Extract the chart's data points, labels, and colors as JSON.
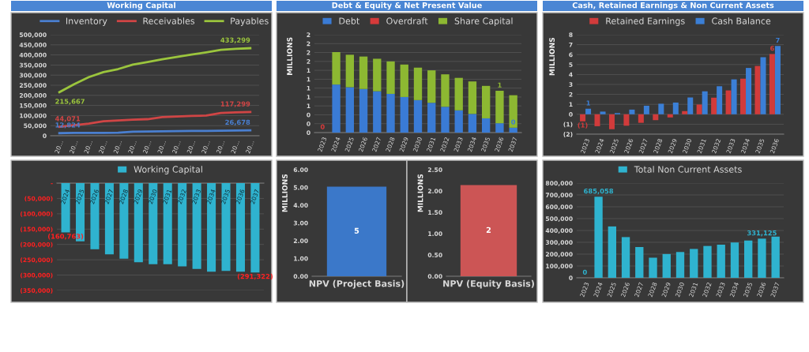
{
  "chart_data": [
    {
      "type": "line",
      "title": "Working Capital",
      "categories": [
        "20…",
        "20…",
        "20…",
        "20…",
        "20…",
        "20…",
        "20…",
        "20…",
        "20…",
        "20…",
        "20…",
        "20…",
        "20…",
        "20…"
      ],
      "series": [
        {
          "name": "Inventory",
          "color": "#4a7fd0",
          "values": [
            12824,
            14000,
            14000,
            14000,
            15000,
            20000,
            21000,
            22000,
            23000,
            24000,
            24000,
            25000,
            26000,
            26678
          ],
          "value_labels": [
            "12,824",
            null,
            null,
            null,
            null,
            null,
            null,
            null,
            null,
            null,
            null,
            null,
            null,
            "26,678"
          ]
        },
        {
          "name": "Receivables",
          "color": "#d04545",
          "values": [
            44071,
            52000,
            60000,
            72000,
            76000,
            80000,
            82000,
            92000,
            95000,
            98000,
            100000,
            113000,
            116000,
            117299
          ],
          "value_labels": [
            "44,071",
            null,
            null,
            null,
            null,
            null,
            null,
            null,
            null,
            null,
            null,
            null,
            null,
            "117,299"
          ]
        },
        {
          "name": "Payables",
          "color": "#9bc53d",
          "values": [
            215667,
            255000,
            290000,
            315000,
            330000,
            352000,
            365000,
            378000,
            390000,
            402000,
            413000,
            425000,
            430000,
            433299
          ],
          "value_labels": [
            "215,667",
            null,
            null,
            null,
            null,
            null,
            null,
            null,
            null,
            null,
            null,
            null,
            null,
            "433,299"
          ]
        }
      ],
      "ylim": [
        0,
        500000
      ],
      "yticks": [
        0,
        {
          "value": 50000,
          "label": "50,000"
        },
        {
          "value": 100000,
          "label": "100,000"
        },
        {
          "value": 150000,
          "label": "150,000"
        },
        {
          "value": 200000,
          "label": "200,000"
        },
        {
          "value": 250000,
          "label": "250,000"
        },
        {
          "value": 300000,
          "label": "300,000"
        },
        {
          "value": 350000,
          "label": "350,000"
        },
        {
          "value": 400000,
          "label": "400,000"
        },
        {
          "value": 450000,
          "label": "450,000"
        },
        {
          "value": 500000,
          "label": "500,000"
        }
      ],
      "grid": "y",
      "legend": "top"
    },
    {
      "type": "bar",
      "title": "Debt & Equity & Net Present Value",
      "ylabel": "MILLIONS",
      "stacked": true,
      "categories": [
        "2023",
        "2024",
        "2025",
        "2026",
        "2027",
        "2028",
        "2029",
        "2030",
        "2031",
        "2032",
        "2033",
        "2034",
        "2035",
        "2036",
        "2037"
      ],
      "series": [
        {
          "name": "Debt",
          "color": "#3a7bd5",
          "values": [
            0,
            1.08,
            1.02,
            0.98,
            0.93,
            0.87,
            0.8,
            0.73,
            0.67,
            0.58,
            0.5,
            0.42,
            0.32,
            0.21,
            0.11
          ],
          "value_labels": [
            null,
            null,
            null,
            null,
            null,
            null,
            null,
            null,
            null,
            null,
            null,
            null,
            null,
            null,
            "0"
          ]
        },
        {
          "name": "Overdraft",
          "color": "#d63a3a",
          "values": [
            0,
            0,
            0,
            0,
            0,
            0,
            0,
            0,
            0,
            0,
            0,
            0,
            0,
            0,
            0
          ],
          "value_labels": [
            "0",
            null,
            null,
            null,
            null,
            null,
            null,
            null,
            null,
            null,
            null,
            null,
            null,
            null,
            null
          ]
        },
        {
          "name": "Share Capital",
          "color": "#8db832",
          "values": [
            0,
            0.73,
            0.73,
            0.73,
            0.73,
            0.73,
            0.73,
            0.73,
            0.73,
            0.73,
            0.73,
            0.73,
            0.73,
            0.73,
            0.73
          ],
          "value_labels": [
            null,
            null,
            null,
            null,
            null,
            null,
            null,
            null,
            null,
            null,
            null,
            null,
            null,
            "1",
            null
          ]
        }
      ],
      "ylim": [
        0,
        2.2
      ],
      "yticks": [
        0,
        {
          "value": 0.2,
          "label": "0"
        },
        {
          "value": 0.4,
          "label": "0"
        },
        {
          "value": 0.6,
          "label": "1"
        },
        {
          "value": 0.8,
          "label": "1"
        },
        1,
        {
          "value": 1.2,
          "label": "1"
        },
        {
          "value": 1.4,
          "label": "1"
        },
        {
          "value": 1.6,
          "label": "2"
        },
        {
          "value": 1.8,
          "label": "2"
        },
        {
          "value": 2.0,
          "label": "2"
        },
        {
          "value": 2.2,
          "label": "2"
        }
      ],
      "grid": "y",
      "legend": "top"
    },
    {
      "type": "bar",
      "title": "Cash, Retained Earnings & Non Current Assets",
      "ylabel": "MILLIONS",
      "categories": [
        "2023",
        "2024",
        "2025",
        "2026",
        "2027",
        "2028",
        "2029",
        "2030",
        "2031",
        "2032",
        "2033",
        "2034",
        "2035",
        "2036"
      ],
      "series": [
        {
          "name": "Retained Earnings",
          "color": "#d13b3b",
          "values": [
            -0.71,
            -1.2,
            -1.5,
            -1.15,
            -0.86,
            -0.59,
            -0.32,
            0.32,
            0.98,
            1.67,
            2.4,
            3.58,
            4.86,
            6.06
          ],
          "value_labels": [
            "(1)",
            null,
            null,
            null,
            null,
            null,
            null,
            null,
            null,
            null,
            null,
            null,
            null,
            "6"
          ]
        },
        {
          "name": "Cash Balance",
          "color": "#3b7fd6",
          "values": [
            0.56,
            0.27,
            0.12,
            0.47,
            0.86,
            1.06,
            1.18,
            1.69,
            2.31,
            2.82,
            3.51,
            4.66,
            5.74,
            6.87
          ],
          "value_labels": [
            "1",
            null,
            null,
            null,
            null,
            null,
            null,
            null,
            null,
            null,
            null,
            null,
            null,
            "7"
          ]
        }
      ],
      "ylim": [
        -2,
        8
      ],
      "yticks": [
        {
          "value": -2,
          "label": "(2)"
        },
        {
          "value": -1,
          "label": "(1)"
        },
        0,
        1,
        2,
        3,
        4,
        5,
        6,
        7,
        8
      ],
      "grid": "y",
      "legend": "top"
    },
    {
      "type": "bar",
      "categories": [
        "2024",
        "2025",
        "2026",
        "2027",
        "2028",
        "2029",
        "2030",
        "2031",
        "2032",
        "2033",
        "2034",
        "2035",
        "2036",
        "2037"
      ],
      "series": [
        {
          "name": "Working Capital",
          "color": "#2fb3cf",
          "values": [
            -160763,
            -189500,
            -215700,
            -232000,
            -246400,
            -258000,
            -264500,
            -264500,
            -271700,
            -279800,
            -288800,
            -286000,
            -288800,
            -291322
          ],
          "value_labels": [
            "(160,763)",
            null,
            null,
            null,
            null,
            null,
            null,
            null,
            null,
            null,
            null,
            null,
            null,
            "(291,322)"
          ]
        }
      ],
      "ylim": [
        -350000,
        0
      ],
      "yticks": [
        {
          "value": 0,
          "label": "-"
        },
        {
          "value": -50000,
          "label": "(50,000)"
        },
        {
          "value": -100000,
          "label": "(100,000)"
        },
        {
          "value": -150000,
          "label": "(150,000)"
        },
        {
          "value": -200000,
          "label": "(200,000)"
        },
        {
          "value": -250000,
          "label": "(250,000)"
        },
        {
          "value": -300000,
          "label": "(300,000)"
        },
        {
          "value": -350000,
          "label": "(350,000)"
        }
      ],
      "grid": "y",
      "legend": "top"
    },
    {
      "type": "bar",
      "ylabel": "MILLIONS",
      "categories": [
        "NPV (Project Basis)"
      ],
      "values": [
        5.05
      ],
      "colors": [
        "#3b78c9"
      ],
      "value_labels": [
        "5"
      ],
      "ylim": [
        0,
        6
      ],
      "yticks": [
        {
          "value": 0,
          "label": "0.00"
        },
        {
          "value": 1,
          "label": "1.00"
        },
        {
          "value": 2,
          "label": "2.00"
        },
        {
          "value": 3,
          "label": "3.00"
        },
        {
          "value": 4,
          "label": "4.00"
        },
        {
          "value": 5,
          "label": "5.00"
        },
        {
          "value": 6,
          "label": "6.00"
        }
      ]
    },
    {
      "type": "bar",
      "ylabel": "MILLIONS",
      "categories": [
        "NPV (Equity Basis)"
      ],
      "values": [
        2.14
      ],
      "colors": [
        "#cc5555"
      ],
      "value_labels": [
        "2"
      ],
      "ylim": [
        0,
        2.5
      ],
      "yticks": [
        {
          "value": 0,
          "label": "0.00"
        },
        {
          "value": 0.5,
          "label": "0.50"
        },
        {
          "value": 1,
          "label": "1.00"
        },
        {
          "value": 1.5,
          "label": "1.50"
        },
        {
          "value": 2,
          "label": "2.00"
        },
        {
          "value": 2.5,
          "label": "2.50"
        }
      ]
    },
    {
      "type": "bar",
      "categories": [
        "2023",
        "2024",
        "2025",
        "2026",
        "2027",
        "2028",
        "2029",
        "2030",
        "2031",
        "2032",
        "2033",
        "2034",
        "2035",
        "2036",
        "2037"
      ],
      "series": [
        {
          "name": "Total Non Current Assets",
          "color": "#2fb3cf",
          "values": [
            0,
            685058,
            434000,
            344000,
            260000,
            170000,
            201000,
            218000,
            244000,
            269000,
            280000,
            298500,
            315000,
            331125,
            348000
          ],
          "value_labels": [
            "0",
            "685,058",
            null,
            null,
            null,
            null,
            null,
            null,
            null,
            null,
            null,
            null,
            null,
            "331,125",
            null
          ]
        }
      ],
      "ylim": [
        0,
        800000
      ],
      "yticks": [
        0,
        {
          "value": 100000,
          "label": "100,000"
        },
        {
          "value": 200000,
          "label": "200,000"
        },
        {
          "value": 300000,
          "label": "300,000"
        },
        {
          "value": 400000,
          "label": "400,000"
        },
        {
          "value": 500000,
          "label": "500,000"
        },
        {
          "value": 600000,
          "label": "600,000"
        },
        {
          "value": 700000,
          "label": "700,000"
        },
        {
          "value": 800000,
          "label": "800,000"
        }
      ],
      "grid": "y",
      "legend": "top"
    }
  ]
}
